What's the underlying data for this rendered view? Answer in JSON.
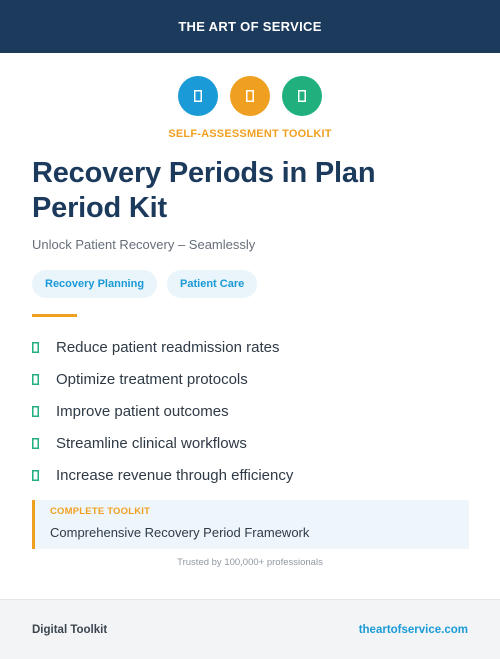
{
  "header": {
    "brand": "THE ART OF SERVICE"
  },
  "icons": [
    {
      "name": "badge-icon-blue",
      "color": "#1a9ad6"
    },
    {
      "name": "badge-icon-orange",
      "color": "#f0a020"
    },
    {
      "name": "badge-icon-green",
      "color": "#1fb07e"
    }
  ],
  "eyebrow": "SELF-ASSESSMENT TOOLKIT",
  "title": "Recovery Periods in Plan Period Kit",
  "subtitle": "Unlock Patient Recovery – Seamlessly",
  "tags": [
    "Recovery Planning",
    "Patient Care"
  ],
  "benefits": [
    "Reduce patient readmission rates",
    "Optimize treatment protocols",
    "Improve patient outcomes",
    "Streamline clinical workflows",
    "Increase revenue through efficiency"
  ],
  "callout": {
    "label": "COMPLETE TOOLKIT",
    "value": "Comprehensive Recovery Period Framework"
  },
  "trusted": "Trusted by 100,000+ professionals",
  "footer": {
    "left": "Digital Toolkit",
    "right": "theartofservice.com"
  },
  "colors": {
    "navy": "#1c3a5c",
    "accent": "#f0a020",
    "blue": "#1a9ad6",
    "green": "#1fb07e"
  }
}
